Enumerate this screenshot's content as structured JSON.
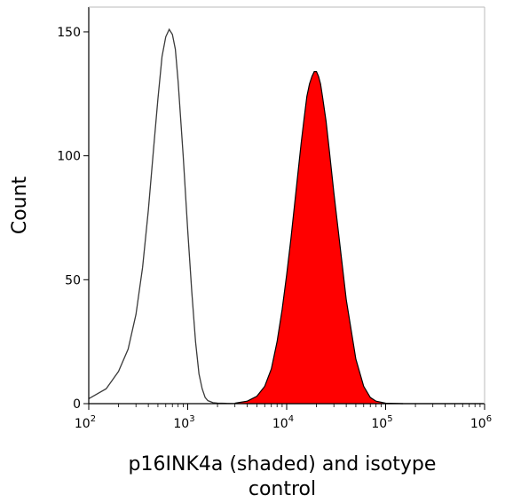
{
  "chart_data": {
    "type": "area",
    "xlabel_lines": [
      "p16INK4a (shaded) and isotype",
      "control"
    ],
    "ylabel": "Count",
    "x_scale": "log10",
    "xlim": [
      100,
      1000000
    ],
    "ylim": [
      0,
      160
    ],
    "x_ticks": [
      {
        "value": 100,
        "base": "10",
        "exp": "2"
      },
      {
        "value": 1000,
        "base": "10",
        "exp": "3"
      },
      {
        "value": 10000,
        "base": "10",
        "exp": "4"
      },
      {
        "value": 100000,
        "base": "10",
        "exp": "5"
      },
      {
        "value": 1000000,
        "base": "10",
        "exp": "6"
      }
    ],
    "y_ticks": [
      0,
      50,
      100,
      150
    ],
    "grid": false,
    "series": [
      {
        "style": "outline",
        "color": "#3a3a3a",
        "x": [
          100,
          150,
          200,
          250,
          300,
          350,
          400,
          450,
          500,
          550,
          600,
          650,
          700,
          750,
          800,
          900,
          1000,
          1100,
          1200,
          1300,
          1400,
          1500,
          1600,
          1800,
          2000,
          2500,
          3000,
          4000,
          5000,
          7000,
          10000,
          100000,
          1000000
        ],
        "y": [
          2,
          6,
          13,
          22,
          36,
          55,
          78,
          102,
          123,
          140,
          148,
          151,
          149,
          143,
          130,
          100,
          70,
          45,
          25,
          12,
          6,
          2.5,
          1.2,
          0.4,
          0.2,
          0.1,
          0.05,
          0,
          0,
          0,
          0,
          0,
          0
        ]
      },
      {
        "style": "filled",
        "color": "#ff0000",
        "x": [
          3000,
          4000,
          5000,
          6000,
          7000,
          8000,
          9000,
          10000,
          11000,
          12000,
          13000,
          14000,
          15000,
          16000,
          17000,
          18000,
          19000,
          20000,
          21000,
          22000,
          23000,
          25000,
          27000,
          30000,
          35000,
          40000,
          50000,
          60000,
          70000,
          80000,
          100000,
          150000
        ],
        "y": [
          0.2,
          1,
          3,
          7,
          14,
          25,
          38,
          52,
          66,
          80,
          93,
          105,
          115,
          124,
          129,
          132,
          134,
          134,
          132,
          129,
          124,
          114,
          102,
          85,
          62,
          42,
          18,
          7,
          2.5,
          1,
          0.2,
          0
        ]
      }
    ]
  }
}
